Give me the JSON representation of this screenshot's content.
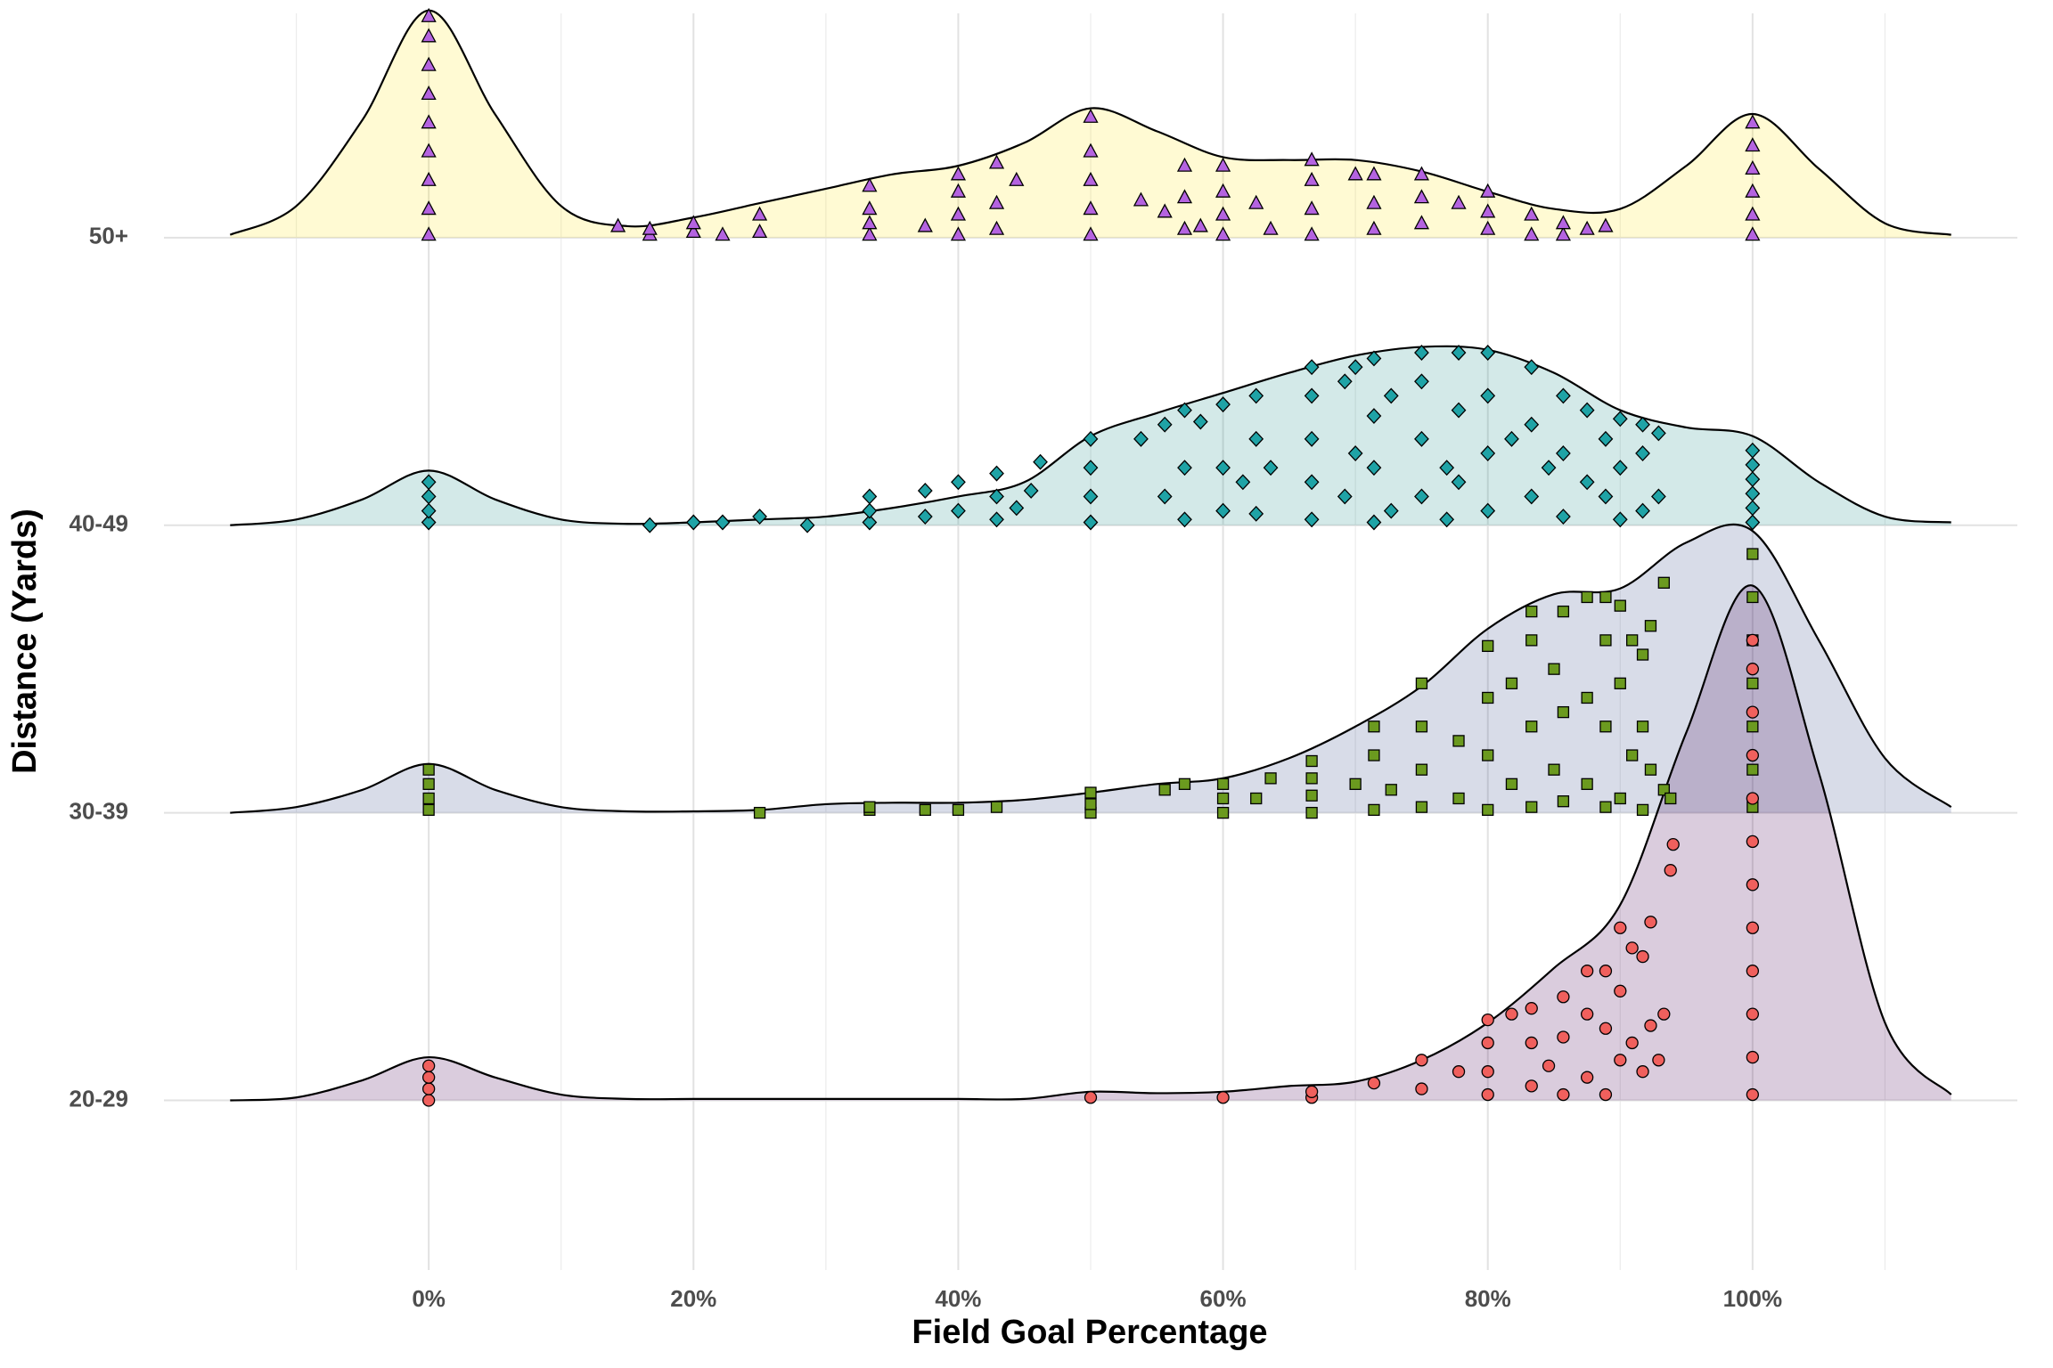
{
  "chart_data": {
    "type": "ridgeline",
    "x_label": "Field Goal Percentage",
    "y_label": "Distance (Yards)",
    "xlim": [
      -20,
      120
    ],
    "xticks": [
      {
        "value": 0,
        "label": "0%"
      },
      {
        "value": 20,
        "label": "20%"
      },
      {
        "value": 40,
        "label": "40%"
      },
      {
        "value": 60,
        "label": "60%"
      },
      {
        "value": 80,
        "label": "80%"
      },
      {
        "value": 100,
        "label": "100%"
      }
    ],
    "x_minor_ticks": [
      -10,
      10,
      30,
      50,
      70,
      90,
      110
    ],
    "ylim": [
      0.41,
      4.78
    ],
    "grid": true,
    "fill_alpha": 0.2,
    "categories": [
      "20-29",
      "30-39",
      "40-49",
      "50+"
    ],
    "density_x": [
      -15,
      -10,
      -5,
      0,
      5,
      10,
      15,
      20,
      25,
      30,
      35,
      40,
      45,
      50,
      55,
      60,
      65,
      70,
      75,
      80,
      85,
      90,
      95,
      100,
      105,
      110,
      115
    ],
    "series": [
      {
        "color": "#440154",
        "point_color": "#f0605d",
        "shape": "circle",
        "density": [
          0,
          0.01,
          0.07,
          0.15,
          0.08,
          0.02,
          0.005,
          0.005,
          0.005,
          0.005,
          0.005,
          0.005,
          0.005,
          0.03,
          0.025,
          0.03,
          0.05,
          0.065,
          0.14,
          0.27,
          0.46,
          0.68,
          1.28,
          1.79,
          1.14,
          0.27,
          0.02
        ],
        "point_x": [
          0,
          0,
          0,
          0,
          50,
          60,
          66.7,
          66.7,
          71.4,
          75,
          75,
          77.8,
          80,
          80,
          80,
          80,
          81.8,
          83.3,
          83.3,
          83.3,
          84.6,
          85.7,
          85.7,
          85.7,
          87.5,
          87.5,
          87.5,
          88.9,
          88.9,
          88.9,
          90,
          90,
          90,
          90.9,
          90.9,
          91.7,
          91.7,
          92.3,
          92.3,
          92.9,
          93.3,
          93.8,
          94,
          100,
          100,
          100,
          100,
          100,
          100,
          100,
          100,
          100,
          100,
          100,
          100
        ],
        "point_y": [
          0,
          0.04,
          0.08,
          0.12,
          0.01,
          0.01,
          0.01,
          0.03,
          0.06,
          0.04,
          0.14,
          0.1,
          0.02,
          0.1,
          0.2,
          0.28,
          0.3,
          0.05,
          0.2,
          0.32,
          0.12,
          0.02,
          0.22,
          0.36,
          0.08,
          0.3,
          0.45,
          0.02,
          0.25,
          0.45,
          0.14,
          0.38,
          0.6,
          0.2,
          0.53,
          0.1,
          0.5,
          0.26,
          0.62,
          0.14,
          0.3,
          0.8,
          0.89,
          0.02,
          0.15,
          0.3,
          0.45,
          0.6,
          0.75,
          0.9,
          1.05,
          1.2,
          1.35,
          1.5,
          1.6
        ]
      },
      {
        "color": "#3b528b",
        "point_color": "#6b9a1f",
        "shape": "square",
        "density": [
          0,
          0.02,
          0.08,
          0.17,
          0.08,
          0.02,
          0.005,
          0.005,
          0.01,
          0.03,
          0.035,
          0.035,
          0.045,
          0.07,
          0.1,
          0.12,
          0.19,
          0.3,
          0.44,
          0.64,
          0.76,
          0.78,
          0.94,
          0.98,
          0.6,
          0.19,
          0.02
        ],
        "point_x": [
          0,
          0,
          0,
          0,
          25,
          33.3,
          33.3,
          37.5,
          40,
          42.9,
          50,
          50,
          50,
          55.6,
          57.1,
          60,
          60,
          60,
          62.5,
          63.6,
          66.7,
          66.7,
          66.7,
          66.7,
          70,
          71.4,
          71.4,
          71.4,
          72.7,
          75,
          75,
          75,
          75,
          77.8,
          77.8,
          80,
          80,
          80,
          80,
          81.8,
          81.8,
          83.3,
          83.3,
          83.3,
          83.3,
          85,
          85,
          85.7,
          85.7,
          85.7,
          87.5,
          87.5,
          87.5,
          88.9,
          88.9,
          88.9,
          88.9,
          90,
          90,
          90,
          90.9,
          90.9,
          91.7,
          91.7,
          91.7,
          92.3,
          92.3,
          93.3,
          93.3,
          93.8,
          100,
          100,
          100,
          100,
          100,
          100,
          100
        ],
        "point_y": [
          0.01,
          0.05,
          0.1,
          0.15,
          0,
          0.01,
          0.02,
          0.01,
          0.01,
          0.02,
          0,
          0.03,
          0.07,
          0.08,
          0.1,
          0,
          0.05,
          0.1,
          0.05,
          0.12,
          0,
          0.06,
          0.12,
          0.18,
          0.1,
          0.01,
          0.2,
          0.3,
          0.08,
          0.02,
          0.15,
          0.3,
          0.45,
          0.05,
          0.25,
          0.01,
          0.2,
          0.4,
          0.58,
          0.1,
          0.45,
          0.02,
          0.3,
          0.6,
          0.7,
          0.15,
          0.5,
          0.04,
          0.35,
          0.7,
          0.1,
          0.4,
          0.75,
          0.02,
          0.3,
          0.6,
          0.75,
          0.05,
          0.45,
          0.72,
          0.2,
          0.6,
          0.01,
          0.3,
          0.55,
          0.15,
          0.65,
          0.08,
          0.8,
          0.05,
          0.02,
          0.15,
          0.3,
          0.45,
          0.6,
          0.75,
          0.9
        ]
      },
      {
        "color": "#21918c",
        "point_color": "#1fa3a6",
        "shape": "diamond",
        "density": [
          0,
          0.02,
          0.09,
          0.19,
          0.09,
          0.02,
          0.005,
          0.01,
          0.02,
          0.03,
          0.06,
          0.1,
          0.15,
          0.31,
          0.39,
          0.46,
          0.53,
          0.59,
          0.62,
          0.61,
          0.53,
          0.4,
          0.34,
          0.31,
          0.15,
          0.03,
          0.01
        ],
        "point_x": [
          0,
          0,
          0,
          0,
          16.7,
          20,
          22.2,
          25,
          28.6,
          33.3,
          33.3,
          33.3,
          37.5,
          37.5,
          40,
          40,
          42.9,
          42.9,
          42.9,
          44.4,
          45.5,
          46.2,
          50,
          50,
          50,
          50,
          53.8,
          55.6,
          55.6,
          57.1,
          57.1,
          57.1,
          58.3,
          60,
          60,
          60,
          61.5,
          62.5,
          62.5,
          62.5,
          63.6,
          66.7,
          66.7,
          66.7,
          66.7,
          66.7,
          69.2,
          69.2,
          70,
          70,
          71.4,
          71.4,
          71.4,
          71.4,
          72.7,
          72.7,
          75,
          75,
          75,
          75,
          76.9,
          76.9,
          77.8,
          77.8,
          77.8,
          80,
          80,
          80,
          80,
          81.8,
          83.3,
          83.3,
          83.3,
          84.6,
          85.7,
          85.7,
          85.7,
          87.5,
          87.5,
          88.9,
          88.9,
          90,
          90,
          90,
          91.7,
          91.7,
          91.7,
          92.9,
          92.9,
          100,
          100,
          100,
          100,
          100,
          100
        ],
        "point_y": [
          0.01,
          0.05,
          0.1,
          0.15,
          0,
          0.01,
          0.01,
          0.03,
          0,
          0.01,
          0.05,
          0.1,
          0.03,
          0.12,
          0.05,
          0.15,
          0.02,
          0.1,
          0.18,
          0.06,
          0.12,
          0.22,
          0.01,
          0.1,
          0.2,
          0.3,
          0.3,
          0.1,
          0.35,
          0.02,
          0.2,
          0.4,
          0.36,
          0.05,
          0.2,
          0.42,
          0.15,
          0.04,
          0.3,
          0.45,
          0.2,
          0.02,
          0.15,
          0.3,
          0.45,
          0.55,
          0.1,
          0.5,
          0.25,
          0.55,
          0.01,
          0.2,
          0.38,
          0.58,
          0.05,
          0.45,
          0.1,
          0.3,
          0.5,
          0.6,
          0.02,
          0.2,
          0.15,
          0.4,
          0.6,
          0.05,
          0.25,
          0.45,
          0.6,
          0.3,
          0.1,
          0.35,
          0.55,
          0.2,
          0.03,
          0.25,
          0.45,
          0.15,
          0.4,
          0.1,
          0.3,
          0.02,
          0.2,
          0.37,
          0.05,
          0.25,
          0.35,
          0.1,
          0.32,
          0.01,
          0.06,
          0.11,
          0.16,
          0.21,
          0.26
        ]
      },
      {
        "color": "#fde725",
        "point_color": "#b463e0",
        "shape": "triangle",
        "density": [
          0.01,
          0.11,
          0.41,
          0.79,
          0.43,
          0.11,
          0.04,
          0.07,
          0.12,
          0.17,
          0.22,
          0.25,
          0.33,
          0.45,
          0.37,
          0.28,
          0.27,
          0.27,
          0.23,
          0.16,
          0.1,
          0.1,
          0.25,
          0.43,
          0.24,
          0.05,
          0.01
        ],
        "point_x": [
          0,
          0,
          0,
          0,
          0,
          0,
          0,
          0,
          0,
          14.3,
          16.7,
          16.7,
          20,
          20,
          22.2,
          25,
          25,
          33.3,
          33.3,
          33.3,
          33.3,
          37.5,
          40,
          40,
          40,
          40,
          42.9,
          42.9,
          42.9,
          44.4,
          50,
          50,
          50,
          50,
          50,
          53.8,
          55.6,
          57.1,
          57.1,
          57.1,
          58.3,
          60,
          60,
          60,
          60,
          62.5,
          63.6,
          66.7,
          66.7,
          66.7,
          66.7,
          70,
          71.4,
          71.4,
          71.4,
          75,
          75,
          75,
          77.8,
          80,
          80,
          80,
          83.3,
          83.3,
          85.7,
          85.7,
          87.5,
          88.9,
          100,
          100,
          100,
          100,
          100,
          100
        ],
        "point_y": [
          0.01,
          0.1,
          0.2,
          0.3,
          0.4,
          0.5,
          0.6,
          0.7,
          0.77,
          0.04,
          0.01,
          0.03,
          0.02,
          0.05,
          0.01,
          0.02,
          0.08,
          0.01,
          0.05,
          0.1,
          0.18,
          0.04,
          0.01,
          0.08,
          0.16,
          0.22,
          0.03,
          0.12,
          0.26,
          0.2,
          0.01,
          0.1,
          0.2,
          0.3,
          0.42,
          0.13,
          0.09,
          0.03,
          0.14,
          0.25,
          0.04,
          0.01,
          0.08,
          0.16,
          0.25,
          0.12,
          0.03,
          0.01,
          0.1,
          0.2,
          0.27,
          0.22,
          0.03,
          0.12,
          0.22,
          0.05,
          0.14,
          0.22,
          0.12,
          0.03,
          0.09,
          0.16,
          0.01,
          0.08,
          0.01,
          0.05,
          0.03,
          0.04,
          0.01,
          0.08,
          0.16,
          0.24,
          0.32,
          0.4
        ]
      }
    ]
  }
}
